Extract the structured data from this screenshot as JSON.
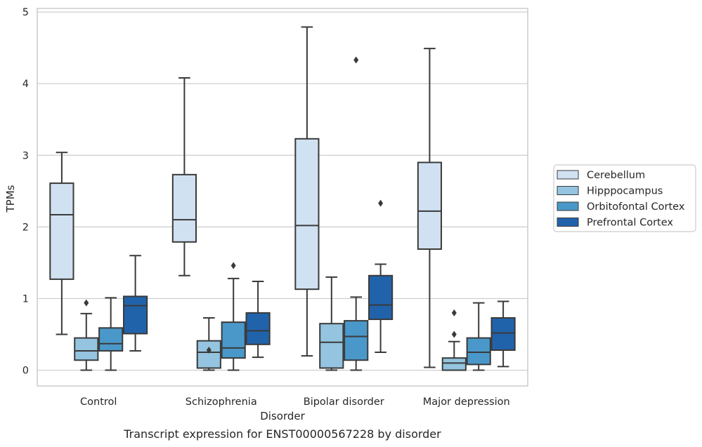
{
  "chart_data": {
    "type": "boxplot",
    "title": "",
    "caption": "Transcript expression for ENST00000567228 by disorder",
    "xlabel": "Disorder",
    "ylabel": "TPMs",
    "ylim": [
      -0.22,
      5.05
    ],
    "yticks": [
      0,
      1,
      2,
      3,
      4,
      5
    ],
    "grid": true,
    "legend_position": "right",
    "categories": [
      "Control",
      "Schizophrenia",
      "Bipolar disorder",
      "Major depression"
    ],
    "series": [
      {
        "name": "Cerebellum",
        "color": "#d0e1f2",
        "boxes": [
          {
            "whisker_low": 0.5,
            "q1": 1.27,
            "median": 2.17,
            "q3": 2.61,
            "whisker_high": 3.04,
            "outliers": []
          },
          {
            "whisker_low": 1.32,
            "q1": 1.79,
            "median": 2.1,
            "q3": 2.73,
            "whisker_high": 4.08,
            "outliers": []
          },
          {
            "whisker_low": 0.2,
            "q1": 1.13,
            "median": 2.02,
            "q3": 3.23,
            "whisker_high": 4.79,
            "outliers": []
          },
          {
            "whisker_low": 0.04,
            "q1": 1.69,
            "median": 2.22,
            "q3": 2.9,
            "whisker_high": 4.49,
            "outliers": []
          }
        ]
      },
      {
        "name": "Hipppocampus",
        "color": "#94c4df",
        "boxes": [
          {
            "whisker_low": 0.0,
            "q1": 0.14,
            "median": 0.27,
            "q3": 0.45,
            "whisker_high": 0.79,
            "outliers": [
              0.94
            ]
          },
          {
            "whisker_low": 0.0,
            "q1": 0.03,
            "median": 0.25,
            "q3": 0.41,
            "whisker_high": 0.73,
            "outliers": [
              0.28
            ]
          },
          {
            "whisker_low": 0.0,
            "q1": 0.03,
            "median": 0.39,
            "q3": 0.65,
            "whisker_high": 1.3,
            "outliers": []
          },
          {
            "whisker_low": 0.0,
            "q1": 0.0,
            "median": 0.1,
            "q3": 0.17,
            "whisker_high": 0.4,
            "outliers": [
              0.5,
              0.8
            ]
          }
        ]
      },
      {
        "name": "Orbitofontal Cortex",
        "color": "#4a98c9",
        "boxes": [
          {
            "whisker_low": 0.0,
            "q1": 0.27,
            "median": 0.37,
            "q3": 0.59,
            "whisker_high": 1.01,
            "outliers": []
          },
          {
            "whisker_low": 0.0,
            "q1": 0.17,
            "median": 0.31,
            "q3": 0.67,
            "whisker_high": 1.28,
            "outliers": [
              1.46
            ]
          },
          {
            "whisker_low": 0.0,
            "q1": 0.14,
            "median": 0.47,
            "q3": 0.69,
            "whisker_high": 1.02,
            "outliers": [
              4.33
            ]
          },
          {
            "whisker_low": 0.0,
            "q1": 0.08,
            "median": 0.25,
            "q3": 0.45,
            "whisker_high": 0.94,
            "outliers": []
          }
        ]
      },
      {
        "name": "Prefrontal Cortex",
        "color": "#2163aa",
        "boxes": [
          {
            "whisker_low": 0.27,
            "q1": 0.51,
            "median": 0.9,
            "q3": 1.03,
            "whisker_high": 1.6,
            "outliers": []
          },
          {
            "whisker_low": 0.18,
            "q1": 0.36,
            "median": 0.55,
            "q3": 0.8,
            "whisker_high": 1.24,
            "outliers": []
          },
          {
            "whisker_low": 0.25,
            "q1": 0.71,
            "median": 0.91,
            "q3": 1.32,
            "whisker_high": 1.48,
            "outliers": [
              2.33
            ]
          },
          {
            "whisker_low": 0.05,
            "q1": 0.28,
            "median": 0.52,
            "q3": 0.73,
            "whisker_high": 0.96,
            "outliers": []
          }
        ]
      }
    ]
  }
}
